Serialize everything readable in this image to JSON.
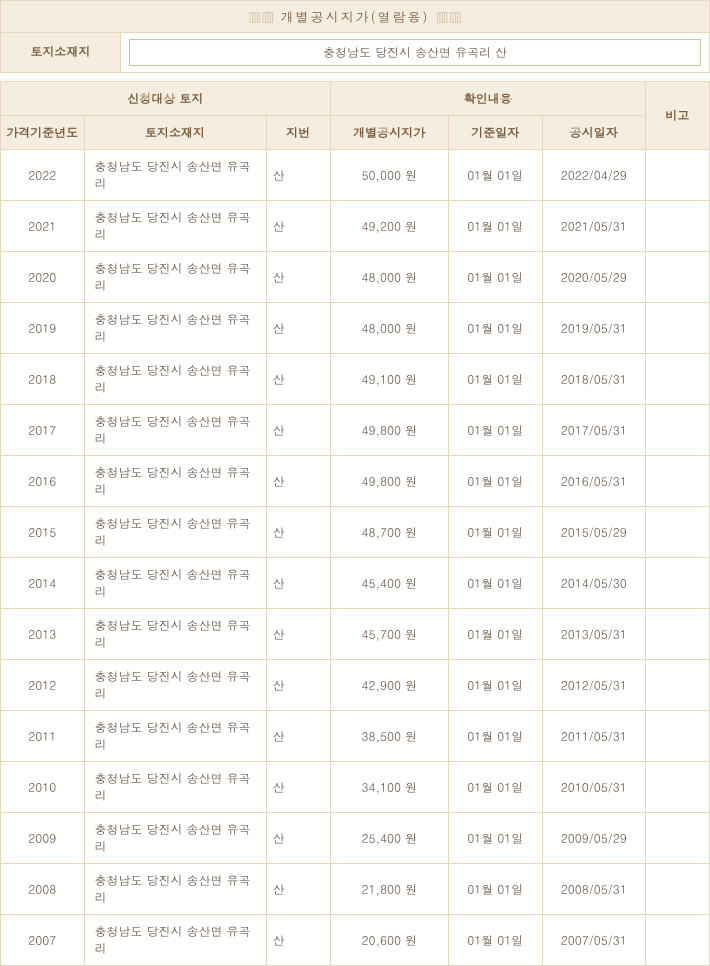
{
  "title": "개별공시지가(열람용)",
  "location_label": "토지소재지",
  "location_value": "충청남도 당진시 송산면 유곡리 산",
  "group_headers": {
    "left": "신청대상 토지",
    "right": "확인내용"
  },
  "columns": {
    "year": "가격기준년도",
    "addr": "토지소재지",
    "jibun": "지번",
    "price": "개별공시지가",
    "base_date": "기준일자",
    "pub_date": "공시일자",
    "note": "비고"
  },
  "addr_text": "충청남도 당진시 송산면 유곡리",
  "jibun_text": "산",
  "base_date_text": "01월 01일",
  "rows": [
    {
      "year": "2022",
      "price": "50,000 원",
      "pub": "2022/04/29"
    },
    {
      "year": "2021",
      "price": "49,200 원",
      "pub": "2021/05/31"
    },
    {
      "year": "2020",
      "price": "48,000 원",
      "pub": "2020/05/29"
    },
    {
      "year": "2019",
      "price": "48,000 원",
      "pub": "2019/05/31"
    },
    {
      "year": "2018",
      "price": "49,100 원",
      "pub": "2018/05/31"
    },
    {
      "year": "2017",
      "price": "49,800 원",
      "pub": "2017/05/31"
    },
    {
      "year": "2016",
      "price": "49,800 원",
      "pub": "2016/05/31"
    },
    {
      "year": "2015",
      "price": "48,700 원",
      "pub": "2015/05/29"
    },
    {
      "year": "2014",
      "price": "45,400 원",
      "pub": "2014/05/30"
    },
    {
      "year": "2013",
      "price": "45,700 원",
      "pub": "2013/05/31"
    },
    {
      "year": "2012",
      "price": "42,900 원",
      "pub": "2012/05/31"
    },
    {
      "year": "2011",
      "price": "38,500 원",
      "pub": "2011/05/31"
    },
    {
      "year": "2010",
      "price": "34,100 원",
      "pub": "2010/05/31"
    },
    {
      "year": "2009",
      "price": "25,400 원",
      "pub": "2009/05/29"
    },
    {
      "year": "2008",
      "price": "21,800 원",
      "pub": "2008/05/31"
    },
    {
      "year": "2007",
      "price": "20,600 원",
      "pub": "2007/05/31"
    }
  ]
}
